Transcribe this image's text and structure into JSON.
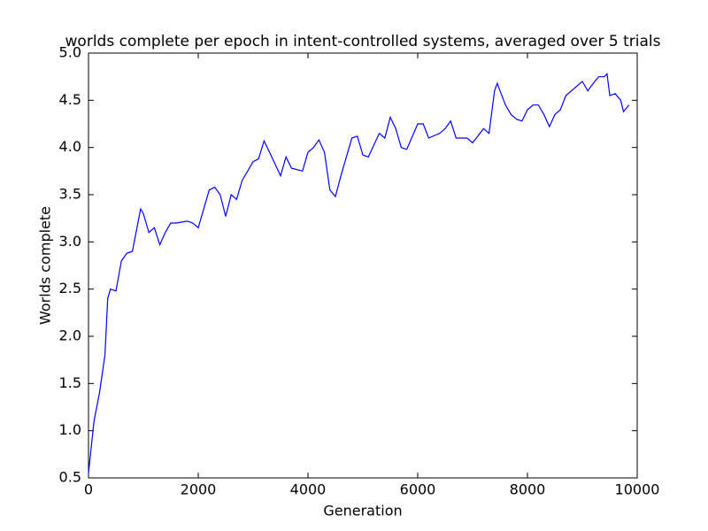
{
  "chart_data": {
    "type": "line",
    "title": "worlds complete per epoch in intent-controlled systems, averaged over 5 trials",
    "xlabel": "Generation",
    "ylabel": "Worlds complete",
    "x": [
      0,
      100,
      200,
      300,
      350,
      400,
      500,
      600,
      700,
      800,
      900,
      950,
      1000,
      1100,
      1200,
      1300,
      1400,
      1500,
      1600,
      1800,
      1900,
      2000,
      2200,
      2300,
      2400,
      2500,
      2600,
      2700,
      2800,
      3000,
      3100,
      3200,
      3300,
      3500,
      3600,
      3700,
      3900,
      4000,
      4100,
      4200,
      4300,
      4400,
      4500,
      4600,
      4800,
      4900,
      5000,
      5100,
      5300,
      5400,
      5500,
      5600,
      5700,
      5800,
      6000,
      6100,
      6200,
      6400,
      6500,
      6600,
      6700,
      6900,
      7000,
      7200,
      7300,
      7400,
      7450,
      7500,
      7600,
      7700,
      7800,
      7900,
      8000,
      8100,
      8200,
      8300,
      8400,
      8500,
      8600,
      8700,
      8800,
      9000,
      9100,
      9200,
      9300,
      9400,
      9450,
      9500,
      9600,
      9700,
      9750,
      9850
    ],
    "series": [
      {
        "name": "Worlds complete",
        "color": "#0000ff",
        "values": [
          0.55,
          1.1,
          1.4,
          1.8,
          2.4,
          2.5,
          2.48,
          2.8,
          2.88,
          2.9,
          3.2,
          3.35,
          3.3,
          3.1,
          3.15,
          2.97,
          3.1,
          3.2,
          3.2,
          3.22,
          3.2,
          3.15,
          3.55,
          3.58,
          3.5,
          3.27,
          3.5,
          3.45,
          3.65,
          3.85,
          3.88,
          4.07,
          3.95,
          3.7,
          3.9,
          3.78,
          3.75,
          3.95,
          4.0,
          4.08,
          3.95,
          3.55,
          3.48,
          3.7,
          4.1,
          4.12,
          3.92,
          3.9,
          4.15,
          4.1,
          4.32,
          4.2,
          4.0,
          3.98,
          4.25,
          4.25,
          4.1,
          4.15,
          4.2,
          4.28,
          4.1,
          4.1,
          4.05,
          4.2,
          4.15,
          4.6,
          4.68,
          4.6,
          4.45,
          4.35,
          4.3,
          4.28,
          4.4,
          4.45,
          4.45,
          4.35,
          4.22,
          4.35,
          4.4,
          4.55,
          4.6,
          4.7,
          4.6,
          4.68,
          4.75,
          4.75,
          4.78,
          4.55,
          4.57,
          4.5,
          4.38,
          4.45
        ]
      }
    ],
    "xlim": [
      0,
      10000
    ],
    "xticks": [
      0,
      2000,
      4000,
      6000,
      8000,
      10000
    ],
    "ylim": [
      0.5,
      5.0
    ],
    "yticks": [
      0.5,
      {
        "value": 1,
        "label": "1.0"
      },
      1.5,
      {
        "value": 2,
        "label": "2.0"
      },
      2.5,
      {
        "value": 3,
        "label": "3.0"
      },
      3.5,
      {
        "value": 4,
        "label": "4.0"
      },
      4.5,
      {
        "value": 5,
        "label": "5.0"
      }
    ],
    "grid": false
  }
}
